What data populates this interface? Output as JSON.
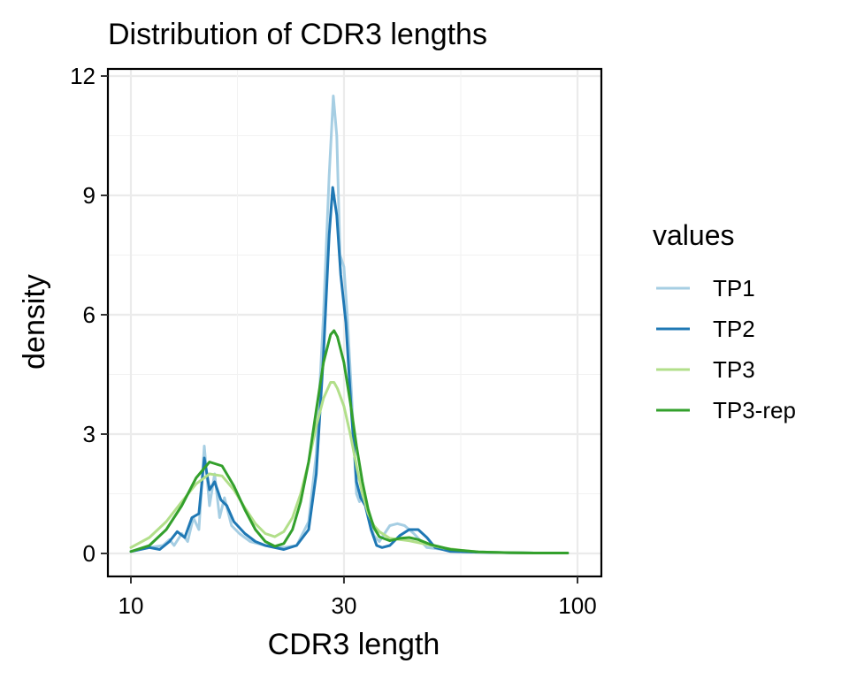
{
  "chart_data": {
    "type": "line",
    "title": "Distribution of CDR3 lengths",
    "xlabel": "CDR3 length",
    "ylabel": "density",
    "x_scale": "log10",
    "xlim": [
      9.3,
      105
    ],
    "ylim": [
      -0.5,
      12.2
    ],
    "xticks": [
      10,
      30,
      100
    ],
    "yticks": [
      0,
      3,
      6,
      9,
      12
    ],
    "xtick_labels": [
      "10",
      "30",
      "100"
    ],
    "ytick_labels": [
      "0",
      "3",
      "6",
      "9",
      "12"
    ],
    "grid": true,
    "legend": {
      "title": "values",
      "position": "right"
    },
    "series": [
      {
        "name": "TP1",
        "color": "#A6CEE3",
        "points": [
          [
            10,
            0.05
          ],
          [
            11,
            0.15
          ],
          [
            11.8,
            0.2
          ],
          [
            12.2,
            0.35
          ],
          [
            12.5,
            0.2
          ],
          [
            13,
            0.5
          ],
          [
            13.4,
            0.3
          ],
          [
            13.8,
            0.9
          ],
          [
            14.2,
            0.6
          ],
          [
            14.6,
            2.7
          ],
          [
            15,
            1.2
          ],
          [
            15.4,
            2.0
          ],
          [
            15.8,
            0.9
          ],
          [
            16.2,
            1.4
          ],
          [
            16.8,
            0.7
          ],
          [
            17.5,
            0.5
          ],
          [
            18.5,
            0.3
          ],
          [
            20,
            0.2
          ],
          [
            22,
            0.15
          ],
          [
            23.5,
            0.2
          ],
          [
            25,
            0.8
          ],
          [
            26,
            2.5
          ],
          [
            27,
            6.0
          ],
          [
            27.8,
            9.5
          ],
          [
            28.4,
            11.5
          ],
          [
            28.9,
            10.5
          ],
          [
            29.4,
            7.5
          ],
          [
            30,
            7.2
          ],
          [
            30.5,
            6.0
          ],
          [
            31.2,
            4.0
          ],
          [
            32,
            1.5
          ],
          [
            32.5,
            1.3
          ],
          [
            33.2,
            1.6
          ],
          [
            34,
            0.9
          ],
          [
            35,
            0.45
          ],
          [
            36,
            0.3
          ],
          [
            38,
            0.7
          ],
          [
            39.5,
            0.75
          ],
          [
            41,
            0.7
          ],
          [
            43,
            0.5
          ],
          [
            46,
            0.15
          ],
          [
            50,
            0.1
          ],
          [
            55,
            0.05
          ],
          [
            60,
            0.04
          ],
          [
            70,
            0.02
          ],
          [
            80,
            0.01
          ],
          [
            95,
            0.01
          ]
        ]
      },
      {
        "name": "TP2",
        "color": "#1F78B4",
        "points": [
          [
            10,
            0.05
          ],
          [
            11,
            0.15
          ],
          [
            11.6,
            0.1
          ],
          [
            12.2,
            0.3
          ],
          [
            12.7,
            0.55
          ],
          [
            13.2,
            0.4
          ],
          [
            13.7,
            0.9
          ],
          [
            14.2,
            1.0
          ],
          [
            14.6,
            2.4
          ],
          [
            15,
            1.6
          ],
          [
            15.4,
            1.8
          ],
          [
            15.9,
            1.35
          ],
          [
            16.4,
            1.2
          ],
          [
            17,
            0.8
          ],
          [
            18,
            0.5
          ],
          [
            19,
            0.3
          ],
          [
            20,
            0.2
          ],
          [
            22,
            0.1
          ],
          [
            23.5,
            0.2
          ],
          [
            25,
            0.6
          ],
          [
            26,
            2.0
          ],
          [
            27,
            5.0
          ],
          [
            27.8,
            8.0
          ],
          [
            28.3,
            9.2
          ],
          [
            28.9,
            8.5
          ],
          [
            29.5,
            7.0
          ],
          [
            30.3,
            5.8
          ],
          [
            31.2,
            3.5
          ],
          [
            32,
            1.8
          ],
          [
            32.7,
            1.4
          ],
          [
            33.5,
            1.2
          ],
          [
            34.5,
            0.6
          ],
          [
            35.5,
            0.2
          ],
          [
            36.5,
            0.15
          ],
          [
            38,
            0.2
          ],
          [
            40,
            0.45
          ],
          [
            42,
            0.6
          ],
          [
            44,
            0.6
          ],
          [
            46,
            0.4
          ],
          [
            48,
            0.15
          ],
          [
            52,
            0.05
          ],
          [
            60,
            0.03
          ],
          [
            70,
            0.02
          ],
          [
            80,
            0.01
          ],
          [
            95,
            0.01
          ]
        ]
      },
      {
        "name": "TP3",
        "color": "#B2DF8A",
        "points": [
          [
            10,
            0.15
          ],
          [
            11,
            0.4
          ],
          [
            12,
            0.8
          ],
          [
            13,
            1.3
          ],
          [
            14,
            1.75
          ],
          [
            15,
            2.0
          ],
          [
            16,
            1.95
          ],
          [
            17,
            1.6
          ],
          [
            18,
            1.15
          ],
          [
            19,
            0.75
          ],
          [
            20,
            0.5
          ],
          [
            21,
            0.42
          ],
          [
            22,
            0.55
          ],
          [
            23,
            0.9
          ],
          [
            24,
            1.5
          ],
          [
            25,
            2.3
          ],
          [
            26,
            3.2
          ],
          [
            27,
            3.9
          ],
          [
            28,
            4.3
          ],
          [
            28.5,
            4.3
          ],
          [
            29,
            4.15
          ],
          [
            30,
            3.7
          ],
          [
            31,
            3.0
          ],
          [
            32,
            2.2
          ],
          [
            33,
            1.5
          ],
          [
            34,
            1.0
          ],
          [
            35,
            0.7
          ],
          [
            36,
            0.55
          ],
          [
            38,
            0.38
          ],
          [
            40,
            0.35
          ],
          [
            42,
            0.32
          ],
          [
            45,
            0.25
          ],
          [
            50,
            0.14
          ],
          [
            55,
            0.08
          ],
          [
            60,
            0.04
          ],
          [
            70,
            0.02
          ],
          [
            80,
            0.01
          ],
          [
            95,
            0.01
          ]
        ]
      },
      {
        "name": "TP3-rep",
        "color": "#33A02C",
        "points": [
          [
            10,
            0.05
          ],
          [
            11,
            0.2
          ],
          [
            12,
            0.6
          ],
          [
            13,
            1.2
          ],
          [
            14,
            1.9
          ],
          [
            15,
            2.3
          ],
          [
            16,
            2.2
          ],
          [
            17,
            1.7
          ],
          [
            18,
            1.1
          ],
          [
            19,
            0.6
          ],
          [
            20,
            0.3
          ],
          [
            21,
            0.18
          ],
          [
            22,
            0.25
          ],
          [
            23,
            0.6
          ],
          [
            24,
            1.3
          ],
          [
            25,
            2.3
          ],
          [
            26,
            3.6
          ],
          [
            27,
            4.8
          ],
          [
            28,
            5.5
          ],
          [
            28.5,
            5.6
          ],
          [
            29,
            5.45
          ],
          [
            30,
            4.8
          ],
          [
            31,
            3.8
          ],
          [
            32,
            2.7
          ],
          [
            33,
            1.8
          ],
          [
            34,
            1.1
          ],
          [
            35,
            0.65
          ],
          [
            36,
            0.42
          ],
          [
            38,
            0.32
          ],
          [
            40,
            0.38
          ],
          [
            42,
            0.4
          ],
          [
            44,
            0.35
          ],
          [
            47,
            0.22
          ],
          [
            52,
            0.1
          ],
          [
            60,
            0.04
          ],
          [
            70,
            0.02
          ],
          [
            80,
            0.01
          ],
          [
            95,
            0.01
          ]
        ]
      }
    ]
  }
}
